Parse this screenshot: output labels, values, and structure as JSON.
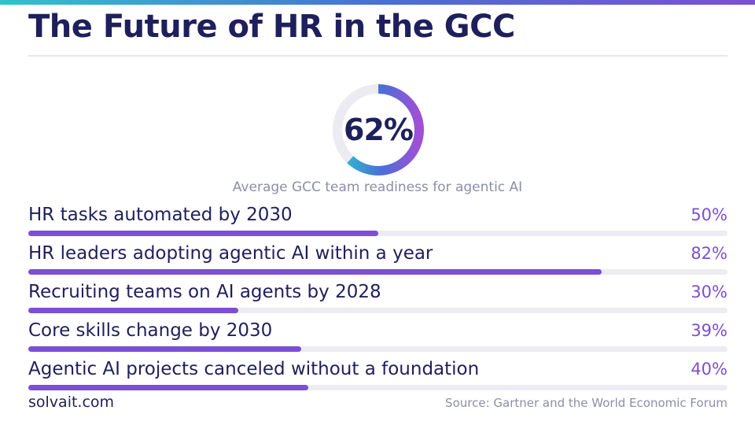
{
  "title": "The Future of HR in the GCC",
  "colors": {
    "accent": "#7b4fd6",
    "navy": "#1f1f5c",
    "track": "#ececf2",
    "muted": "#8a8fa8",
    "ring_start": "#2ec4c9",
    "ring_mid": "#4a6fd8",
    "ring_end": "#a14fd6"
  },
  "readiness": {
    "value_text": "62%",
    "value": 62,
    "caption": "Average GCC team readiness for agentic AI"
  },
  "chart_data": {
    "type": "bar",
    "orientation": "horizontal",
    "title": "",
    "categories": [
      "HR tasks automated by 2030",
      "HR leaders adopting agentic AI within a year",
      "Recruiting teams on AI agents by 2028",
      "Core skills change by 2030",
      "Agentic AI projects canceled without a foundation"
    ],
    "values": [
      50,
      82,
      30,
      39,
      40
    ],
    "value_labels": [
      "50%",
      "82%",
      "30%",
      "39%",
      "40%"
    ],
    "xlim": [
      0,
      100
    ],
    "grid": false
  },
  "footer": {
    "brand": "solvait.com",
    "source": "Source: Gartner and the World Economic Forum"
  }
}
